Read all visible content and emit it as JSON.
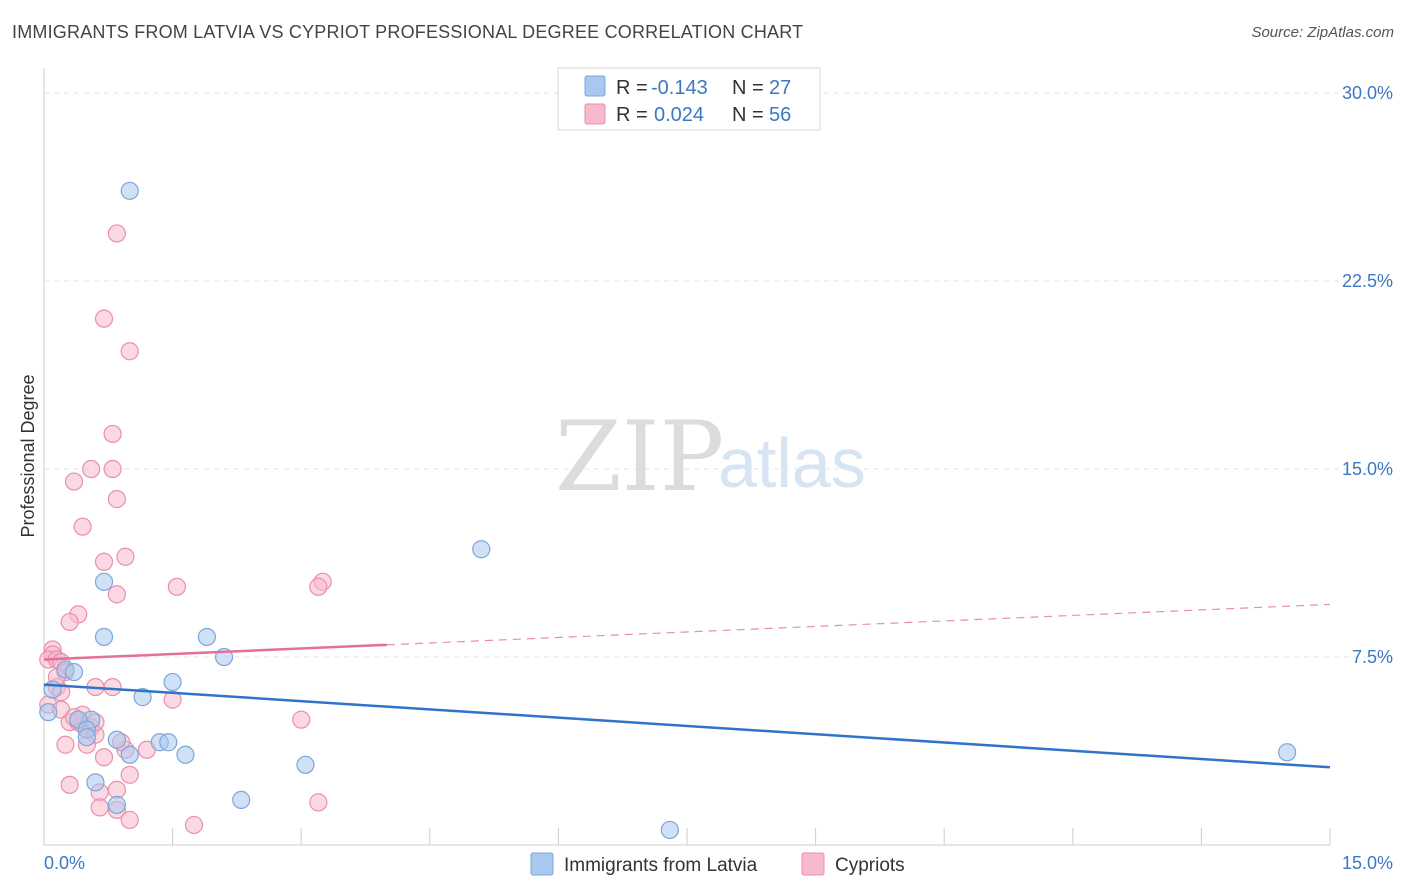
{
  "title": "IMMIGRANTS FROM LATVIA VS CYPRIOT PROFESSIONAL DEGREE CORRELATION CHART",
  "source": "Source: ZipAtlas.com",
  "watermark": {
    "zip": "ZIP",
    "atlas": "atlas"
  },
  "colors": {
    "latvia_fill": "#a9c8ef",
    "latvia_stroke": "#7aa7dc",
    "latvia_line": "#2f74c8",
    "cypriot_fill": "#f7b9cc",
    "cypriot_stroke": "#ea8fab",
    "cypriot_line": "#e3709a",
    "axis_text": "#3b78c4",
    "grid": "#e3e3e3"
  },
  "chart_data": {
    "type": "scatter",
    "title": "IMMIGRANTS FROM LATVIA VS CYPRIOT PROFESSIONAL DEGREE CORRELATION CHART",
    "xlabel": "",
    "ylabel": "Professional Degree",
    "xlim": [
      0,
      15
    ],
    "ylim": [
      0,
      31
    ],
    "x_tick_labels": {
      "min": "0.0%",
      "max": "15.0%"
    },
    "y_ticks": [
      {
        "value": 7.5,
        "label": "7.5%"
      },
      {
        "value": 15.0,
        "label": "15.0%"
      },
      {
        "value": 22.5,
        "label": "22.5%"
      },
      {
        "value": 30.0,
        "label": "30.0%"
      }
    ],
    "legend_top": [
      {
        "r_label": "R =",
        "r_value": "-0.143",
        "n_label": "N =",
        "n_value": "27"
      },
      {
        "r_label": "R =",
        "r_value": "0.024",
        "n_label": "N =",
        "n_value": "56"
      }
    ],
    "series": [
      {
        "name": "Immigrants from Latvia",
        "trend": {
          "x0": 0,
          "y0": 6.4,
          "x1": 15,
          "y1": 3.1,
          "dashed_from": null
        },
        "points": [
          [
            1.0,
            26.1
          ],
          [
            5.1,
            11.8
          ],
          [
            0.7,
            10.5
          ],
          [
            0.7,
            8.3
          ],
          [
            1.9,
            8.3
          ],
          [
            2.1,
            7.5
          ],
          [
            0.25,
            7.0
          ],
          [
            0.35,
            6.9
          ],
          [
            0.1,
            6.2
          ],
          [
            1.5,
            6.5
          ],
          [
            1.15,
            5.9
          ],
          [
            0.05,
            5.3
          ],
          [
            0.55,
            5.0
          ],
          [
            0.4,
            5.0
          ],
          [
            0.5,
            4.6
          ],
          [
            0.5,
            4.3
          ],
          [
            0.85,
            4.2
          ],
          [
            1.35,
            4.1
          ],
          [
            1.45,
            4.1
          ],
          [
            1.0,
            3.6
          ],
          [
            1.65,
            3.6
          ],
          [
            3.05,
            3.2
          ],
          [
            0.6,
            2.5
          ],
          [
            0.85,
            1.6
          ],
          [
            2.3,
            1.8
          ],
          [
            7.3,
            0.6
          ],
          [
            14.5,
            3.7
          ]
        ]
      },
      {
        "name": "Cypriots",
        "trend": {
          "x0": 0,
          "y0": 7.4,
          "x1": 15,
          "y1": 9.6,
          "dashed_from": 4.0
        },
        "points": [
          [
            0.85,
            24.4
          ],
          [
            0.7,
            21.0
          ],
          [
            1.0,
            19.7
          ],
          [
            0.8,
            16.4
          ],
          [
            0.55,
            15.0
          ],
          [
            0.8,
            15.0
          ],
          [
            0.35,
            14.5
          ],
          [
            0.85,
            13.8
          ],
          [
            0.45,
            12.7
          ],
          [
            0.95,
            11.5
          ],
          [
            0.7,
            11.3
          ],
          [
            3.25,
            10.5
          ],
          [
            1.55,
            10.3
          ],
          [
            3.2,
            10.3
          ],
          [
            0.85,
            10.0
          ],
          [
            0.4,
            9.2
          ],
          [
            0.3,
            8.9
          ],
          [
            0.1,
            7.8
          ],
          [
            0.1,
            7.6
          ],
          [
            0.05,
            7.4
          ],
          [
            0.15,
            7.4
          ],
          [
            0.2,
            7.3
          ],
          [
            0.25,
            6.9
          ],
          [
            0.15,
            6.3
          ],
          [
            0.6,
            6.3
          ],
          [
            0.8,
            6.3
          ],
          [
            0.2,
            6.1
          ],
          [
            1.5,
            5.8
          ],
          [
            0.05,
            5.6
          ],
          [
            0.2,
            5.4
          ],
          [
            3.0,
            5.0
          ],
          [
            0.3,
            4.9
          ],
          [
            0.4,
            4.9
          ],
          [
            0.45,
            4.8
          ],
          [
            0.55,
            4.7
          ],
          [
            0.5,
            4.6
          ],
          [
            0.6,
            4.4
          ],
          [
            0.25,
            4.0
          ],
          [
            0.5,
            4.0
          ],
          [
            1.2,
            3.8
          ],
          [
            0.95,
            3.8
          ],
          [
            0.7,
            3.5
          ],
          [
            1.0,
            2.8
          ],
          [
            0.3,
            2.4
          ],
          [
            0.85,
            2.2
          ],
          [
            0.65,
            2.1
          ],
          [
            3.2,
            1.7
          ],
          [
            0.65,
            1.5
          ],
          [
            0.85,
            1.4
          ],
          [
            1.0,
            1.0
          ],
          [
            1.75,
            0.8
          ],
          [
            0.45,
            5.2
          ],
          [
            0.35,
            5.1
          ],
          [
            0.15,
            6.7
          ],
          [
            0.6,
            4.9
          ],
          [
            0.9,
            4.1
          ]
        ]
      }
    ]
  }
}
